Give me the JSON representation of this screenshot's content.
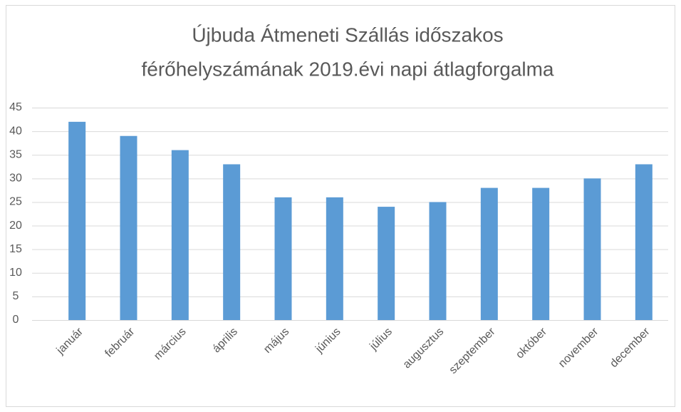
{
  "chart_data": {
    "type": "bar",
    "title": [
      "Újbuda Átmeneti Szállás időszakos",
      "férőhelyszámának 2019.évi napi átlagforgalma"
    ],
    "categories": [
      "január",
      "február",
      "március",
      "április",
      "május",
      "június",
      "július",
      "augusztus",
      "szeptember",
      "október",
      "november",
      "december"
    ],
    "values": [
      42,
      39,
      36,
      33,
      26,
      26,
      24,
      25,
      28,
      28,
      30,
      33
    ],
    "color": "#5b9bd5",
    "ylim": [
      0,
      45
    ],
    "yticks": [
      0,
      5,
      10,
      15,
      20,
      25,
      30,
      35,
      40,
      45
    ],
    "grid": true
  }
}
